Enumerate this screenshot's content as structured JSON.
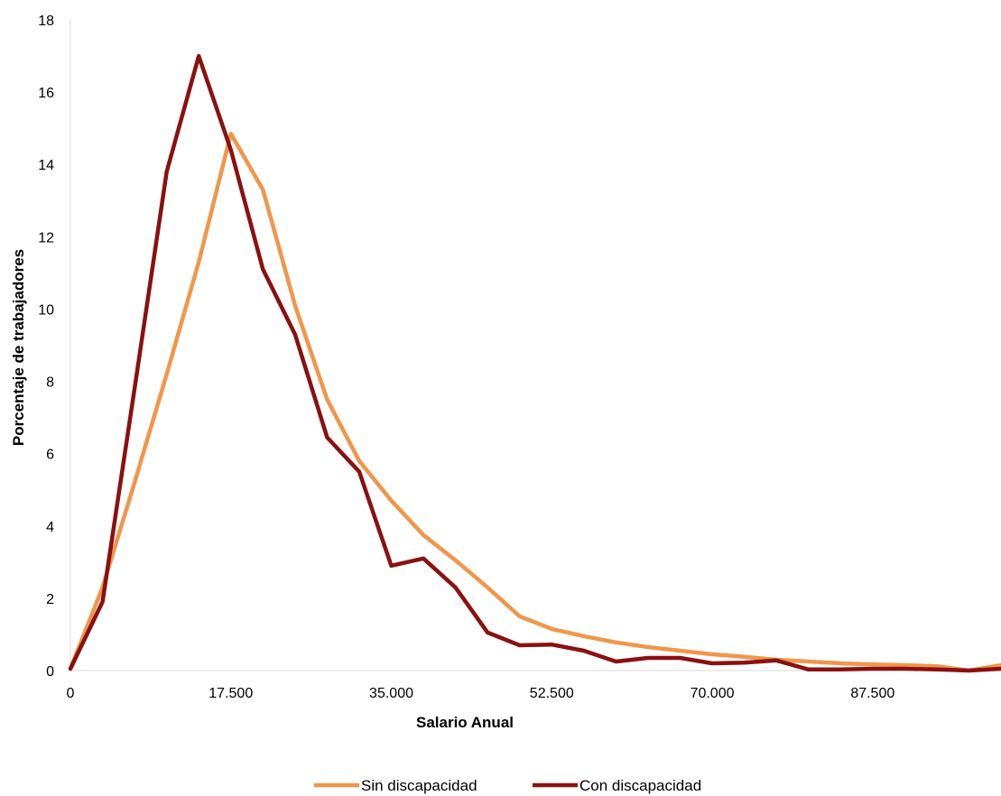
{
  "chart_data": {
    "type": "line",
    "title": "",
    "xlabel": "Salario Anual",
    "ylabel": "Porcentaje de trabajadores",
    "xlim": [
      0,
      101500
    ],
    "ylim": [
      0,
      18
    ],
    "x_ticks": [
      0,
      17500,
      35000,
      52500,
      70000,
      87500
    ],
    "x_tick_labels": [
      "0",
      "17.500",
      "35.000",
      "52.500",
      "70.000",
      "87.500"
    ],
    "y_ticks": [
      0,
      2,
      4,
      6,
      8,
      10,
      12,
      14,
      16,
      18
    ],
    "y_tick_labels": [
      "0",
      "2",
      "4",
      "6",
      "8",
      "10",
      "12",
      "14",
      "16",
      "18"
    ],
    "grid": false,
    "legend_position": "bottom",
    "x": [
      0,
      3500,
      7000,
      10500,
      14000,
      17500,
      21000,
      24500,
      28000,
      31500,
      35000,
      38500,
      42000,
      45500,
      49000,
      52500,
      56000,
      59500,
      63000,
      66500,
      70000,
      73500,
      77000,
      80500,
      84000,
      87500,
      91000,
      94500,
      98000,
      101500
    ],
    "series": [
      {
        "name": "Sin discapacidad",
        "color": "#f0964a",
        "values": [
          0.05,
          2.3,
          5.2,
          8.2,
          11.3,
          14.85,
          13.3,
          10.1,
          7.5,
          5.8,
          4.7,
          3.75,
          3.05,
          2.3,
          1.5,
          1.15,
          0.95,
          0.78,
          0.65,
          0.55,
          0.45,
          0.38,
          0.3,
          0.25,
          0.2,
          0.17,
          0.15,
          0.12,
          0.0,
          0.15
        ]
      },
      {
        "name": "Con discapacidad",
        "color": "#8b1010",
        "values": [
          0.05,
          1.9,
          7.8,
          13.8,
          17.0,
          14.4,
          11.1,
          9.3,
          6.45,
          5.5,
          2.9,
          3.1,
          2.3,
          1.05,
          0.7,
          0.72,
          0.55,
          0.25,
          0.35,
          0.35,
          0.2,
          0.22,
          0.28,
          0.03,
          0.03,
          0.05,
          0.05,
          0.03,
          0.0,
          0.05
        ]
      }
    ]
  }
}
